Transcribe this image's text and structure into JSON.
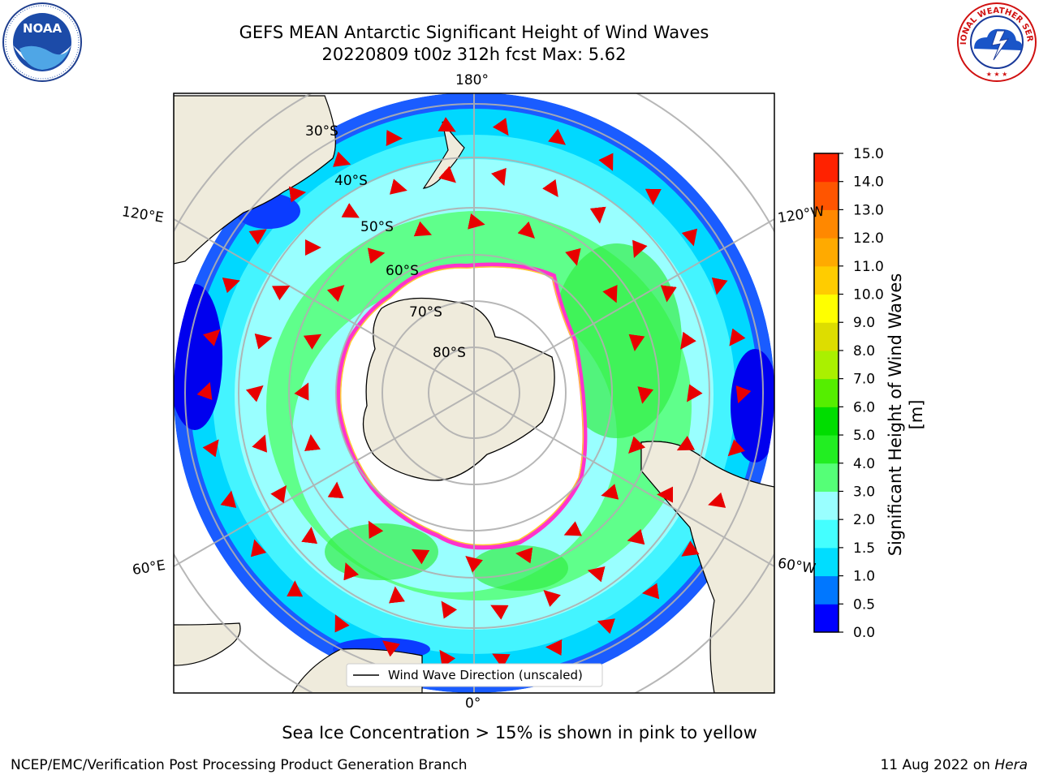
{
  "header": {
    "title_line1": "GEFS MEAN Antarctic Significant Height of Wind Waves",
    "title_line2": "20220809 t00z 312h fcst   Max: 5.62"
  },
  "map": {
    "projection": "south-polar-stereographic",
    "longitude_labels": {
      "top": "180°",
      "bottom": "0°",
      "left_upper": "120°E",
      "left_lower": "60°E",
      "right_upper": "120°W",
      "right_lower": "60°W"
    },
    "latitude_labels": [
      "30°S",
      "40°S",
      "50°S",
      "60°S",
      "70°S",
      "80°S"
    ],
    "legend": {
      "label": "Wind Wave Direction (unscaled)"
    },
    "arrow_color": "#e80000",
    "sea_ice_color": "#ff33cc",
    "land_color": "#efebdc"
  },
  "colorbar": {
    "label": "Significant Height of Wind Waves [m]",
    "ticks": [
      "0.0",
      "0.5",
      "1.0",
      "1.5",
      "2.0",
      "3.0",
      "4.0",
      "5.0",
      "6.0",
      "7.0",
      "8.0",
      "9.0",
      "10.0",
      "11.0",
      "12.0",
      "13.0",
      "14.0",
      "15.0"
    ],
    "colors": [
      "#0000ff",
      "#0077ff",
      "#00ddff",
      "#44ffff",
      "#99ffff",
      "#55ff77",
      "#22ee22",
      "#00dd00",
      "#55ee00",
      "#aaf000",
      "#dddd00",
      "#ffff00",
      "#ffcc00",
      "#ffaa00",
      "#ff8800",
      "#ff5500",
      "#ff2200"
    ]
  },
  "caption": "Sea Ice Concentration > 15% is shown in pink to yellow",
  "footer": {
    "left": "NCEP/EMC/Verification Post Processing Product Generation Branch",
    "right_date": "11 Aug 2022 on ",
    "right_machine": "Hera"
  },
  "logos": {
    "left": "NOAA",
    "right": "NATIONAL WEATHER SERVICE"
  }
}
